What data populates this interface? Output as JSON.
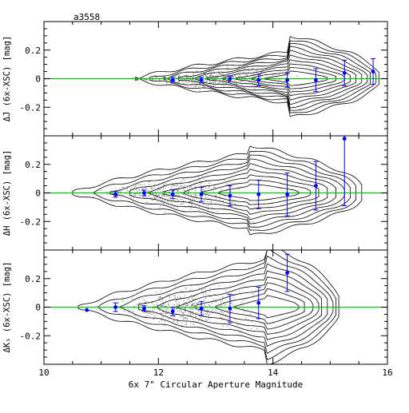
{
  "field_label": "a3558",
  "chart_data": {
    "type": "scatter",
    "xlabel": "6x 7\" Circular Aperture Magnitude",
    "xlim": [
      10,
      16
    ],
    "x_ticks": [
      10,
      12,
      14,
      16
    ],
    "x_tick_labels": [
      "10",
      "12",
      "14",
      "16"
    ],
    "ylim": [
      -0.4,
      0.4
    ],
    "y_ticks": [
      -0.2,
      0,
      0.2
    ],
    "y_tick_labels": [
      "-0.2",
      "0",
      "0.2"
    ],
    "reference_line": 0,
    "colors": {
      "reference_line": "#00cc00",
      "points": "#0000ff",
      "contours": "#000000",
      "frame": "#000000"
    },
    "panels": [
      {
        "ylabel": "ΔJ (6x-XSC) [mag]",
        "x": [
          12.25,
          12.75,
          13.25,
          13.75,
          14.25,
          14.75,
          15.25,
          15.75
        ],
        "y": [
          -0.01,
          -0.01,
          0.0,
          -0.01,
          -0.01,
          -0.01,
          0.04,
          0.05
        ],
        "err": [
          0.02,
          0.02,
          0.02,
          0.04,
          0.05,
          0.08,
          0.09,
          0.09
        ]
      },
      {
        "ylabel": "ΔH (6x-XSC) [mag]",
        "x": [
          11.25,
          11.75,
          12.25,
          12.75,
          13.25,
          13.75,
          14.25,
          14.75,
          15.25
        ],
        "y": [
          -0.01,
          0.0,
          -0.01,
          -0.01,
          -0.02,
          -0.01,
          -0.01,
          0.05,
          0.38
        ],
        "err": [
          0.02,
          0.02,
          0.03,
          0.05,
          0.07,
          0.1,
          0.15,
          0.17,
          0.47
        ]
      },
      {
        "ylabel": "ΔKₛ (6x-XSC) [mag]",
        "x": [
          10.75,
          11.25,
          11.75,
          12.25,
          12.75,
          13.25,
          13.75,
          14.25
        ],
        "y": [
          -0.02,
          0.0,
          -0.01,
          -0.03,
          -0.01,
          -0.01,
          0.03,
          0.24
        ],
        "err": [
          0.0,
          0.03,
          0.02,
          0.03,
          0.05,
          0.1,
          0.11,
          0.13
        ]
      }
    ]
  }
}
